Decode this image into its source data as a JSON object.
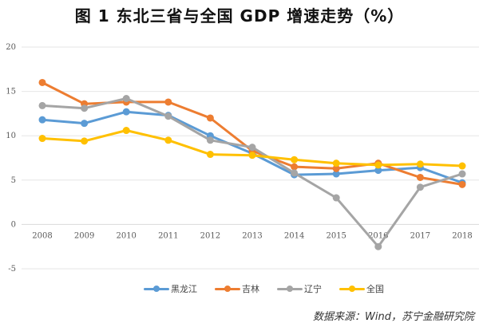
{
  "chart_data": {
    "type": "line",
    "title": "图 1   东北三省与全国 GDP 增速走势（%）",
    "xlabel": "",
    "ylabel": "",
    "x": [
      "2008",
      "2009",
      "2010",
      "2011",
      "2012",
      "2013",
      "2014",
      "2015",
      "2016",
      "2017",
      "2018"
    ],
    "ylim": [
      -5,
      20
    ],
    "yticks": [
      20,
      15,
      10,
      5,
      0,
      -5
    ],
    "grid": true,
    "legend_position": "bottom",
    "series": [
      {
        "name": "黑龙江",
        "color": "#5B9BD5",
        "values": [
          11.8,
          11.4,
          12.7,
          12.3,
          10.0,
          8.0,
          5.6,
          5.7,
          6.1,
          6.4,
          4.7
        ]
      },
      {
        "name": "吉林",
        "color": "#ED7D31",
        "values": [
          16.0,
          13.6,
          13.8,
          13.8,
          12.0,
          8.3,
          6.5,
          6.3,
          6.9,
          5.3,
          4.5
        ]
      },
      {
        "name": "辽宁",
        "color": "#A5A5A5",
        "values": [
          13.4,
          13.1,
          14.2,
          12.2,
          9.5,
          8.7,
          5.8,
          3.0,
          -2.5,
          4.2,
          5.7
        ]
      },
      {
        "name": "全国",
        "color": "#FFC000",
        "values": [
          9.7,
          9.4,
          10.6,
          9.5,
          7.9,
          7.8,
          7.3,
          6.9,
          6.7,
          6.8,
          6.6
        ]
      }
    ]
  },
  "source": "数据来源：Wind，苏宁金融研究院"
}
